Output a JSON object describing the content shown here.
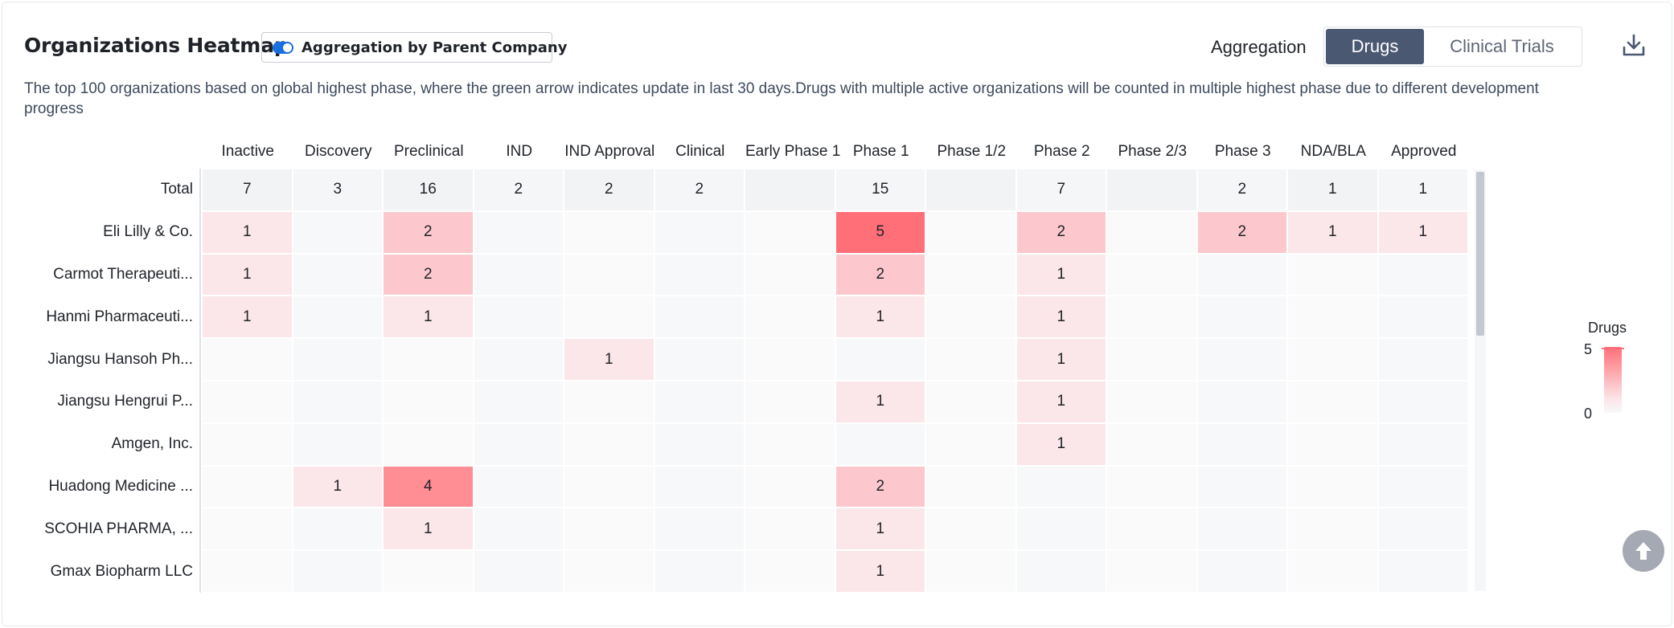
{
  "header": {
    "title": "Organizations Heatmap",
    "aggregation_toggle_label": "Aggregation by Parent Company",
    "aggregation_label": "Aggregation",
    "tabs": [
      "Drugs",
      "Clinical Trials"
    ],
    "active_tab": "Drugs",
    "description": "The top 100 organizations based on global highest phase, where the green arrow indicates update in last 30 days.Drugs with multiple active organizations will be counted in multiple highest phase due to different development progress"
  },
  "legend": {
    "title": "Drugs",
    "max": "5",
    "min": "0"
  },
  "colors": {
    "accent": "#4b5872",
    "heat_high": "#ff6f78",
    "heat_low": "#fbe6e9",
    "toggle": "#1a6fde"
  },
  "icons": {
    "download": "download-icon",
    "back_to_top": "arrow-up-icon"
  },
  "chart_data": {
    "type": "heatmap",
    "title": "Organizations Heatmap",
    "value_label": "Drugs",
    "color_range": [
      0,
      5
    ],
    "columns": [
      "Inactive",
      "Discovery",
      "Preclinical",
      "IND",
      "IND Approval",
      "Clinical",
      "Early Phase 1",
      "Phase 1",
      "Phase 1/2",
      "Phase 2",
      "Phase 2/3",
      "Phase 3",
      "NDA/BLA",
      "Approved"
    ],
    "rows": [
      {
        "label": "Total",
        "values": [
          7,
          3,
          16,
          2,
          2,
          2,
          null,
          15,
          null,
          7,
          null,
          2,
          1,
          1
        ]
      },
      {
        "label": "Eli Lilly & Co.",
        "values": [
          1,
          null,
          2,
          null,
          null,
          null,
          null,
          5,
          null,
          2,
          null,
          2,
          1,
          1
        ]
      },
      {
        "label": "Carmot Therapeuti...",
        "values": [
          1,
          null,
          2,
          null,
          null,
          null,
          null,
          2,
          null,
          1,
          null,
          null,
          null,
          null
        ]
      },
      {
        "label": "Hanmi Pharmaceuti...",
        "values": [
          1,
          null,
          1,
          null,
          null,
          null,
          null,
          1,
          null,
          1,
          null,
          null,
          null,
          null
        ]
      },
      {
        "label": "Jiangsu Hansoh Ph...",
        "values": [
          null,
          null,
          null,
          null,
          1,
          null,
          null,
          null,
          null,
          1,
          null,
          null,
          null,
          null
        ]
      },
      {
        "label": "Jiangsu Hengrui P...",
        "values": [
          null,
          null,
          null,
          null,
          null,
          null,
          null,
          1,
          null,
          1,
          null,
          null,
          null,
          null
        ]
      },
      {
        "label": "Amgen, Inc.",
        "values": [
          null,
          null,
          null,
          null,
          null,
          null,
          null,
          null,
          null,
          1,
          null,
          null,
          null,
          null
        ]
      },
      {
        "label": "Huadong Medicine ...",
        "values": [
          null,
          1,
          4,
          null,
          null,
          null,
          null,
          2,
          null,
          null,
          null,
          null,
          null,
          null
        ]
      },
      {
        "label": "SCOHIA PHARMA, ...",
        "values": [
          null,
          null,
          1,
          null,
          null,
          null,
          null,
          1,
          null,
          null,
          null,
          null,
          null,
          null
        ]
      },
      {
        "label": "Gmax Biopharm LLC",
        "values": [
          null,
          null,
          null,
          null,
          null,
          null,
          null,
          1,
          null,
          null,
          null,
          null,
          null,
          null
        ]
      }
    ]
  }
}
